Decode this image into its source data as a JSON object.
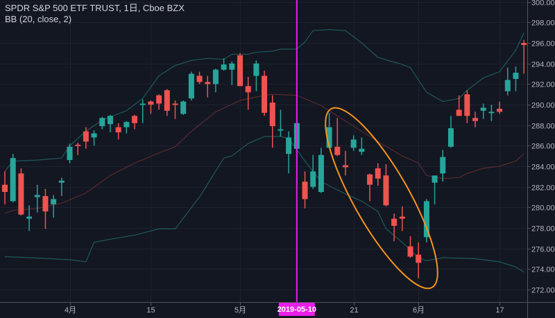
{
  "header": {
    "symbol_title": "SPDR S&P 500 ETF TRUST, 1日, Cboe BZX",
    "indicator": "BB (20, close, 2)"
  },
  "chart_data": {
    "type": "candlestick",
    "title": "SPDR S&P 500 ETF TRUST, 1日, Cboe BZX",
    "ylim": [
      272,
      300
    ],
    "y_ticks": [
      "272.00",
      "274.00",
      "276.00",
      "278.00",
      "280.00",
      "282.00",
      "284.00",
      "286.00",
      "288.00",
      "290.00",
      "292.00",
      "294.00",
      "296.00",
      "298.00",
      "300.00"
    ],
    "x_ticks": [
      {
        "label": "4月",
        "index": 8
      },
      {
        "label": "15",
        "index": 18
      },
      {
        "label": "5月",
        "index": 29
      },
      {
        "label": "21",
        "index": 43
      },
      {
        "label": "6月",
        "index": 51
      },
      {
        "label": "17",
        "index": 61
      }
    ],
    "crosshair": {
      "label": "2019-05-10",
      "index": 36,
      "color": "#e91ee9"
    },
    "colors": {
      "up": "#26a69a",
      "down": "#ef5350",
      "band": "#1e5a5a",
      "basis": "#5a2a2e",
      "annotation": "#f7941d",
      "grid": "#1e2230"
    },
    "ohlc": [
      [
        282.2,
        283.5,
        280.3,
        281.5
      ],
      [
        280.6,
        285.2,
        280.5,
        284.8
      ],
      [
        283.3,
        283.8,
        279.2,
        279.3
      ],
      [
        278.9,
        280.2,
        277.7,
        279.1
      ],
      [
        281.0,
        282.2,
        279.5,
        281.2
      ],
      [
        281.1,
        281.8,
        277.9,
        279.6
      ],
      [
        280.3,
        281.2,
        279.0,
        280.8
      ],
      [
        282.4,
        282.9,
        281.1,
        282.6
      ],
      [
        284.6,
        286.2,
        284.3,
        285.9
      ],
      [
        286.1,
        286.3,
        285.1,
        286.0
      ],
      [
        287.4,
        287.8,
        285.7,
        286.4
      ],
      [
        286.8,
        287.5,
        286.0,
        287.2
      ],
      [
        287.9,
        288.8,
        287.6,
        288.7
      ],
      [
        288.1,
        289.0,
        287.3,
        288.9
      ],
      [
        287.8,
        288.2,
        286.6,
        287.3
      ],
      [
        287.8,
        288.4,
        287.2,
        288.3
      ],
      [
        288.9,
        289.0,
        287.6,
        288.2
      ],
      [
        290.0,
        290.5,
        288.2,
        290.1
      ],
      [
        290.3,
        290.4,
        289.1,
        290.0
      ],
      [
        290.9,
        291.0,
        289.5,
        290.1
      ],
      [
        291.4,
        291.5,
        288.9,
        289.4
      ],
      [
        290.1,
        290.4,
        288.6,
        290.0
      ],
      [
        289.1,
        290.4,
        289.0,
        290.3
      ],
      [
        290.6,
        293.2,
        290.4,
        293.0
      ],
      [
        292.8,
        293.2,
        292.0,
        292.2
      ],
      [
        292.2,
        292.8,
        290.7,
        292.0
      ],
      [
        292.0,
        293.5,
        291.2,
        293.4
      ],
      [
        293.4,
        294.5,
        293.3,
        293.9
      ],
      [
        293.4,
        294.2,
        291.9,
        294.0
      ],
      [
        294.8,
        295.0,
        291.8,
        291.8
      ],
      [
        291.8,
        292.7,
        289.5,
        291.2
      ],
      [
        292.8,
        294.3,
        291.3,
        294.0
      ],
      [
        292.8,
        293.3,
        288.9,
        289.2
      ],
      [
        290.2,
        290.9,
        285.8,
        287.9
      ],
      [
        287.5,
        289.5,
        286.9,
        287.6
      ],
      [
        285.2,
        287.4,
        283.3,
        286.8
      ],
      [
        285.7,
        289.0,
        282.2,
        288.2
      ],
      [
        282.5,
        283.5,
        279.9,
        280.8
      ],
      [
        282.0,
        285.1,
        281.8,
        283.5
      ],
      [
        281.5,
        285.8,
        281.4,
        285.1
      ],
      [
        285.8,
        289.2,
        285.8,
        287.8
      ],
      [
        285.9,
        288.7,
        285.0,
        285.1
      ],
      [
        284.1,
        285.5,
        283.1,
        283.9
      ],
      [
        285.8,
        287.0,
        285.5,
        286.6
      ],
      [
        285.4,
        286.8,
        285.1,
        285.7
      ],
      [
        283.2,
        283.3,
        280.6,
        282.2
      ],
      [
        283.8,
        284.3,
        282.1,
        282.8
      ],
      [
        283.1,
        284.2,
        280.1,
        280.2
      ],
      [
        278.9,
        279.4,
        276.7,
        278.2
      ],
      [
        279.1,
        280.1,
        277.7,
        278.9
      ],
      [
        276.2,
        277.2,
        275.1,
        275.2
      ],
      [
        275.4,
        276.6,
        273.1,
        274.6
      ],
      [
        277.1,
        280.8,
        276.6,
        280.6
      ],
      [
        282.4,
        283.1,
        280.3,
        283.1
      ],
      [
        283.3,
        285.6,
        282.5,
        284.9
      ],
      [
        285.9,
        288.9,
        285.8,
        287.7
      ],
      [
        289.5,
        290.9,
        288.9,
        288.9
      ],
      [
        291.0,
        291.4,
        288.2,
        288.9
      ],
      [
        288.7,
        289.3,
        287.8,
        288.4
      ],
      [
        289.4,
        290.1,
        288.6,
        289.7
      ],
      [
        289.2,
        290.0,
        288.4,
        289.3
      ],
      [
        289.6,
        290.3,
        289.1,
        289.3
      ],
      [
        291.3,
        293.6,
        290.9,
        292.4
      ],
      [
        292.5,
        293.7,
        291.3,
        293.1
      ],
      [
        296.0,
        296.3,
        293.0,
        295.8
      ]
    ],
    "bollinger": {
      "upper": [
        [
          0,
          283.5
        ],
        [
          1,
          284.5
        ],
        [
          4,
          284.6
        ],
        [
          7,
          284.8
        ],
        [
          8,
          286.0
        ],
        [
          10,
          287.4
        ],
        [
          12,
          288.5
        ],
        [
          15,
          289.4
        ],
        [
          17,
          290.6
        ],
        [
          19,
          292.8
        ],
        [
          21,
          293.8
        ],
        [
          23,
          294.3
        ],
        [
          25,
          294.5
        ],
        [
          27,
          294.4
        ],
        [
          28,
          294.9
        ],
        [
          30,
          294.9
        ],
        [
          31,
          295.1
        ],
        [
          33,
          295.2
        ],
        [
          34,
          295.4
        ],
        [
          36,
          295.4
        ],
        [
          37,
          296.1
        ],
        [
          38,
          297.2
        ],
        [
          40,
          297.3
        ],
        [
          42,
          297.2
        ],
        [
          44,
          296.0
        ],
        [
          46,
          294.6
        ],
        [
          49,
          293.9
        ],
        [
          50,
          293.6
        ],
        [
          52,
          291.2
        ],
        [
          54,
          290.3
        ],
        [
          56,
          290.6
        ],
        [
          57,
          291.4
        ],
        [
          59,
          292.6
        ],
        [
          61,
          293.2
        ],
        [
          63,
          295.3
        ],
        [
          64,
          297.0
        ]
      ],
      "basis": [
        [
          0,
          279.4
        ],
        [
          1,
          279.7
        ],
        [
          4,
          279.9
        ],
        [
          7,
          280.4
        ],
        [
          10,
          281.4
        ],
        [
          13,
          283.1
        ],
        [
          16,
          284.3
        ],
        [
          19,
          285.3
        ],
        [
          21,
          285.9
        ],
        [
          23,
          287.4
        ],
        [
          26,
          289.3
        ],
        [
          29,
          290.4
        ],
        [
          32,
          290.9
        ],
        [
          33,
          291.0
        ],
        [
          36,
          290.9
        ],
        [
          39,
          289.9
        ],
        [
          42,
          288.4
        ],
        [
          46,
          286.4
        ],
        [
          49,
          285.0
        ],
        [
          51,
          284.3
        ],
        [
          52,
          283.1
        ],
        [
          54,
          282.8
        ],
        [
          56,
          282.9
        ],
        [
          57,
          283.3
        ],
        [
          59,
          283.8
        ],
        [
          61,
          284.0
        ],
        [
          63,
          284.5
        ],
        [
          64,
          285.2
        ]
      ],
      "lower": [
        [
          0,
          275.2
        ],
        [
          3,
          275.1
        ],
        [
          8,
          274.9
        ],
        [
          10,
          274.7
        ],
        [
          11,
          276.6
        ],
        [
          13,
          276.9
        ],
        [
          16,
          277.3
        ],
        [
          19,
          277.9
        ],
        [
          21,
          277.9
        ],
        [
          24,
          281.0
        ],
        [
          27,
          284.8
        ],
        [
          28,
          285.0
        ],
        [
          30,
          286.2
        ],
        [
          32,
          286.9
        ],
        [
          34,
          286.9
        ],
        [
          35,
          286.7
        ],
        [
          37,
          284.5
        ],
        [
          39,
          282.5
        ],
        [
          40,
          282.1
        ],
        [
          42,
          281.3
        ],
        [
          44,
          280.6
        ],
        [
          46,
          279.6
        ],
        [
          47,
          277.9
        ],
        [
          49,
          276.6
        ],
        [
          51,
          275.1
        ],
        [
          52,
          274.8
        ],
        [
          54,
          275.1
        ],
        [
          58,
          275.0
        ],
        [
          61,
          274.7
        ],
        [
          63,
          274.2
        ],
        [
          64,
          273.7
        ]
      ]
    }
  }
}
